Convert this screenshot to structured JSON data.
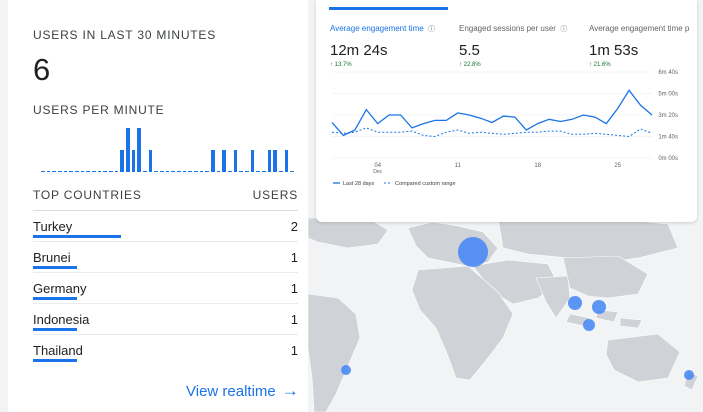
{
  "realtime": {
    "heading": "USERS IN LAST 30 MINUTES",
    "count": "6",
    "per_minute_label": "USERS PER MINUTE",
    "per_minute_values": [
      0,
      0,
      0,
      0,
      0,
      0,
      0,
      0,
      0,
      0,
      0,
      0,
      0,
      0,
      0,
      0,
      1,
      1.5,
      0,
      0,
      0.7,
      0,
      0,
      0,
      0,
      0,
      0,
      0,
      0,
      0,
      0,
      0,
      0,
      0,
      0,
      0,
      0,
      0,
      0,
      0
    ],
    "per_minute_bars": [
      0,
      0,
      0,
      0,
      0,
      0,
      0,
      0,
      0,
      0,
      0,
      0,
      0,
      0,
      1,
      2,
      1,
      2,
      0,
      1,
      0,
      0,
      0,
      0,
      0,
      0,
      0,
      0,
      0,
      0,
      1,
      0,
      1,
      0,
      1,
      0,
      0,
      1,
      0,
      0,
      1,
      1,
      0,
      1,
      0
    ],
    "top_countries_label": "TOP COUNTRIES",
    "users_label": "USERS",
    "countries": [
      {
        "name": "Turkey",
        "users": "2",
        "share": 1.0
      },
      {
        "name": "Brunei",
        "users": "1",
        "share": 0.5
      },
      {
        "name": "Germany",
        "users": "1",
        "share": 0.5
      },
      {
        "name": "Indonesia",
        "users": "1",
        "share": 0.5
      },
      {
        "name": "Thailand",
        "users": "1",
        "share": 0.5
      }
    ],
    "view_link": "View realtime",
    "arrow_icon": "arrow-right-icon"
  },
  "engagement": {
    "metrics": [
      {
        "label": "Average engagement time",
        "value": "12m 24s",
        "change": "↑ 13.7%",
        "selected": true
      },
      {
        "label": "Engaged sessions per user",
        "value": "5.5",
        "change": "↑ 22.8%",
        "selected": false
      },
      {
        "label": "Average engagement time p",
        "value": "1m 53s",
        "change": "↑ 21.6%",
        "selected": false
      }
    ],
    "help_icon": "help-circle-icon",
    "legend": {
      "current": "Last 28 days",
      "previous": "Compared custom range"
    },
    "accent": "#1a73e8"
  },
  "chart_data": {
    "type": "line",
    "x_ticks": [
      {
        "label": "04",
        "sub": "Dec",
        "index": 4
      },
      {
        "label": "11",
        "sub": "",
        "index": 11
      },
      {
        "label": "18",
        "sub": "",
        "index": 18
      },
      {
        "label": "25",
        "sub": "",
        "index": 25
      }
    ],
    "y_ticks": [
      "0m 00s",
      "1m 40s",
      "3m 20s",
      "5m 00s",
      "6m 40s"
    ],
    "ylim": [
      0,
      400
    ],
    "series": [
      {
        "name": "Last 28 days",
        "style": "solid",
        "values": [
          165,
          105,
          130,
          225,
          160,
          200,
          200,
          140,
          160,
          175,
          175,
          210,
          200,
          185,
          165,
          195,
          190,
          130,
          160,
          180,
          170,
          180,
          200,
          190,
          160,
          230,
          315,
          245,
          200
        ]
      },
      {
        "name": "Compared custom range",
        "style": "dashed",
        "values": [
          120,
          115,
          120,
          140,
          120,
          120,
          120,
          125,
          105,
          100,
          120,
          130,
          115,
          120,
          115,
          110,
          115,
          120,
          120,
          125,
          125,
          110,
          110,
          115,
          110,
          105,
          100,
          135,
          115
        ]
      }
    ]
  }
}
